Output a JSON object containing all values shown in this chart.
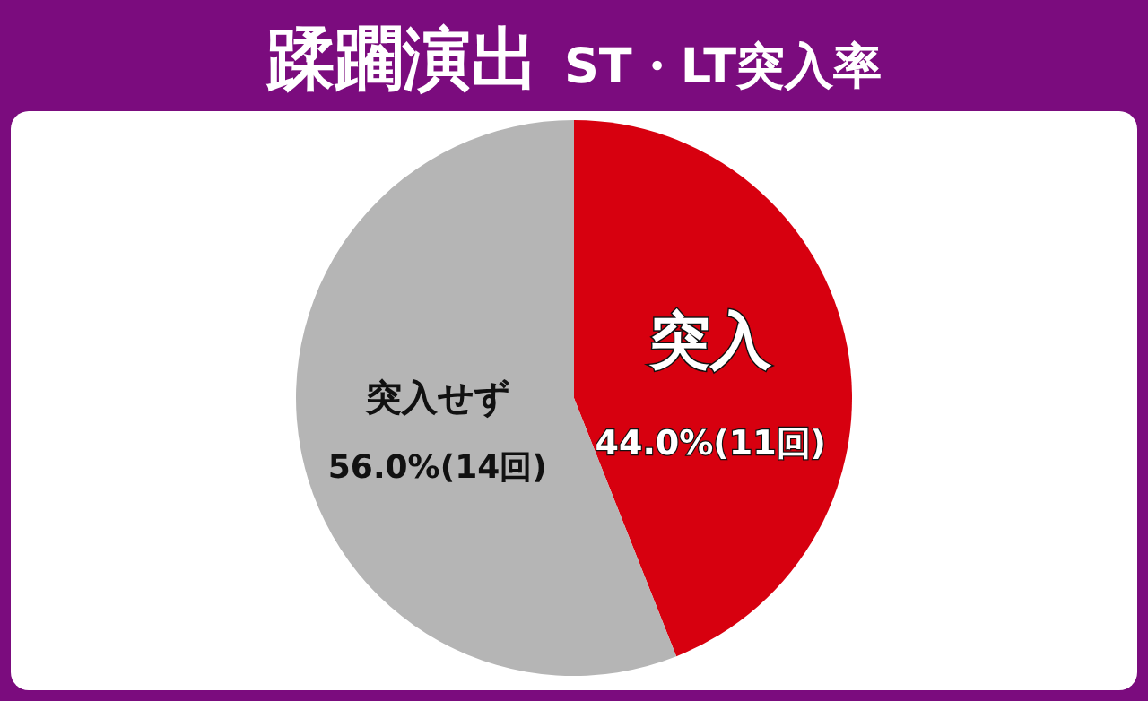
{
  "chart_data": {
    "type": "pie",
    "title": "蹂躙演出",
    "subtitle": "ST・LT突入率",
    "categories": [
      "突入",
      "突入せず"
    ],
    "values": [
      44.0,
      56.0
    ],
    "value_labels": [
      "44.0%(11回)",
      "56.0%(14回)"
    ],
    "colors": [
      "#d7000f",
      "#b5b5b5"
    ]
  }
}
